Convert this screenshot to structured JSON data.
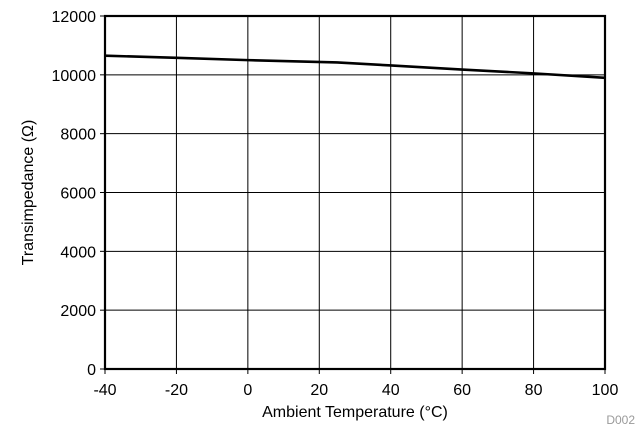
{
  "chart_data": {
    "type": "line",
    "title": "",
    "xlabel": "Ambient Temperature (°C)",
    "ylabel": "Transimpedance (Ω)",
    "xlim": [
      -40,
      100
    ],
    "ylim": [
      0,
      12000
    ],
    "xticks": [
      -40,
      -20,
      0,
      20,
      40,
      60,
      80,
      100
    ],
    "yticks": [
      0,
      2000,
      4000,
      6000,
      8000,
      10000,
      12000
    ],
    "grid": true,
    "series": [
      {
        "x": [
          -40,
          -20,
          0,
          25,
          40,
          60,
          80,
          100
        ],
        "values": [
          10650,
          10580,
          10500,
          10420,
          10320,
          10180,
          10050,
          9900
        ]
      }
    ],
    "annotation": "D002"
  }
}
